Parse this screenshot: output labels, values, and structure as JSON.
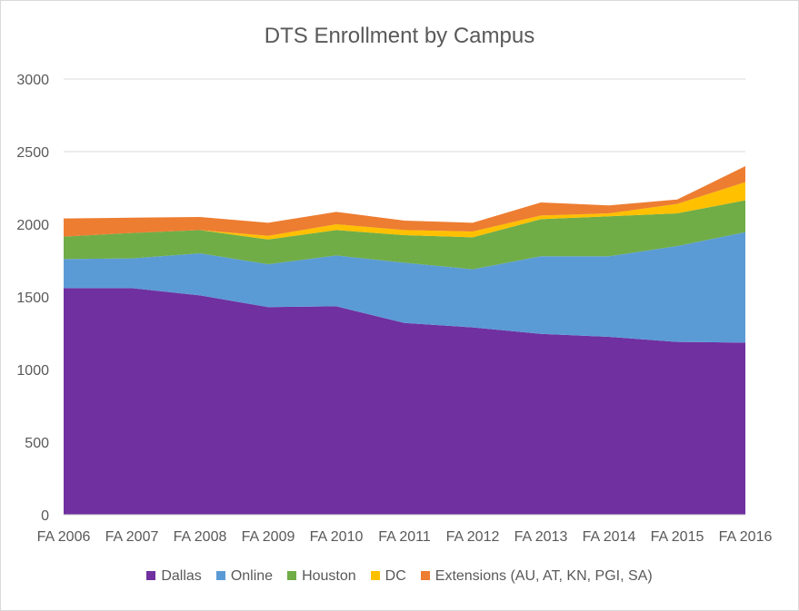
{
  "chart_data": {
    "type": "area",
    "stacked": true,
    "title": "DTS Enrollment by Campus",
    "xlabel": "",
    "ylabel": "",
    "categories": [
      "FA 2006",
      "FA 2007",
      "FA 2008",
      "FA 2009",
      "FA 2010",
      "FA 2011",
      "FA 2012",
      "FA 2013",
      "FA 2014",
      "FA 2015",
      "FA 2016"
    ],
    "ylim": [
      0,
      3000
    ],
    "yticks": [
      "0",
      "500",
      "1000",
      "1500",
      "2000",
      "2500",
      "3000"
    ],
    "grid": true,
    "legend": "bottom",
    "series": [
      {
        "name": "Dallas",
        "color": "#7030A0",
        "values": [
          1560,
          1560,
          1510,
          1430,
          1435,
          1320,
          1290,
          1245,
          1225,
          1190,
          1185
        ]
      },
      {
        "name": "Online",
        "color": "#5B9BD5",
        "values": [
          200,
          205,
          290,
          295,
          350,
          415,
          400,
          535,
          555,
          660,
          760
        ]
      },
      {
        "name": "Houston",
        "color": "#70AD47",
        "values": [
          155,
          175,
          160,
          170,
          175,
          190,
          220,
          255,
          275,
          225,
          220
        ]
      },
      {
        "name": "DC",
        "color": "#FFC000",
        "values": [
          0,
          0,
          0,
          25,
          40,
          35,
          40,
          25,
          20,
          65,
          125
        ]
      },
      {
        "name": "Extensions (AU, AT, KN, PGI, SA)",
        "color": "#ED7D31",
        "values": [
          125,
          105,
          90,
          90,
          85,
          65,
          60,
          90,
          55,
          30,
          110
        ]
      }
    ]
  }
}
